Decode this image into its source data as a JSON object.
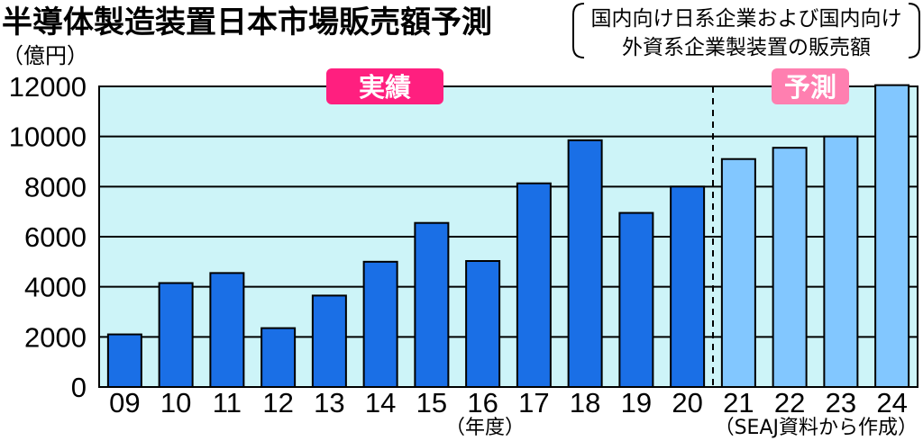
{
  "chart_data": {
    "type": "bar",
    "title": "半導体製造装置日本市場販売額予測",
    "subtitle_lines": [
      "国内向け日系企業および国内向け",
      "外資系企業製装置の販売額"
    ],
    "ylabel": "（億円）",
    "xlabel": "（年度）",
    "source": "（SEAJ資料から作成）",
    "ylim": [
      0,
      12000
    ],
    "yticks": [
      0,
      2000,
      4000,
      6000,
      8000,
      10000,
      12000
    ],
    "grid": true,
    "categories": [
      "09",
      "10",
      "11",
      "12",
      "13",
      "14",
      "15",
      "16",
      "17",
      "18",
      "19",
      "20",
      "21",
      "22",
      "23",
      "24"
    ],
    "values": [
      2100,
      4150,
      4550,
      2350,
      3650,
      5000,
      6550,
      5030,
      8130,
      9850,
      6950,
      8000,
      9100,
      9550,
      10000,
      12050
    ],
    "segments": [
      {
        "label": "実績",
        "from": "09",
        "to": "20"
      },
      {
        "label": "予測",
        "from": "21",
        "to": "24"
      }
    ],
    "colors": {
      "actual_bar": "#1a6fe6",
      "forecast_bar": "#82c7ff",
      "plot_background": "#cdf4f8",
      "actual_badge": "#ff1f7f",
      "forecast_badge": "#ff7fb0"
    }
  }
}
